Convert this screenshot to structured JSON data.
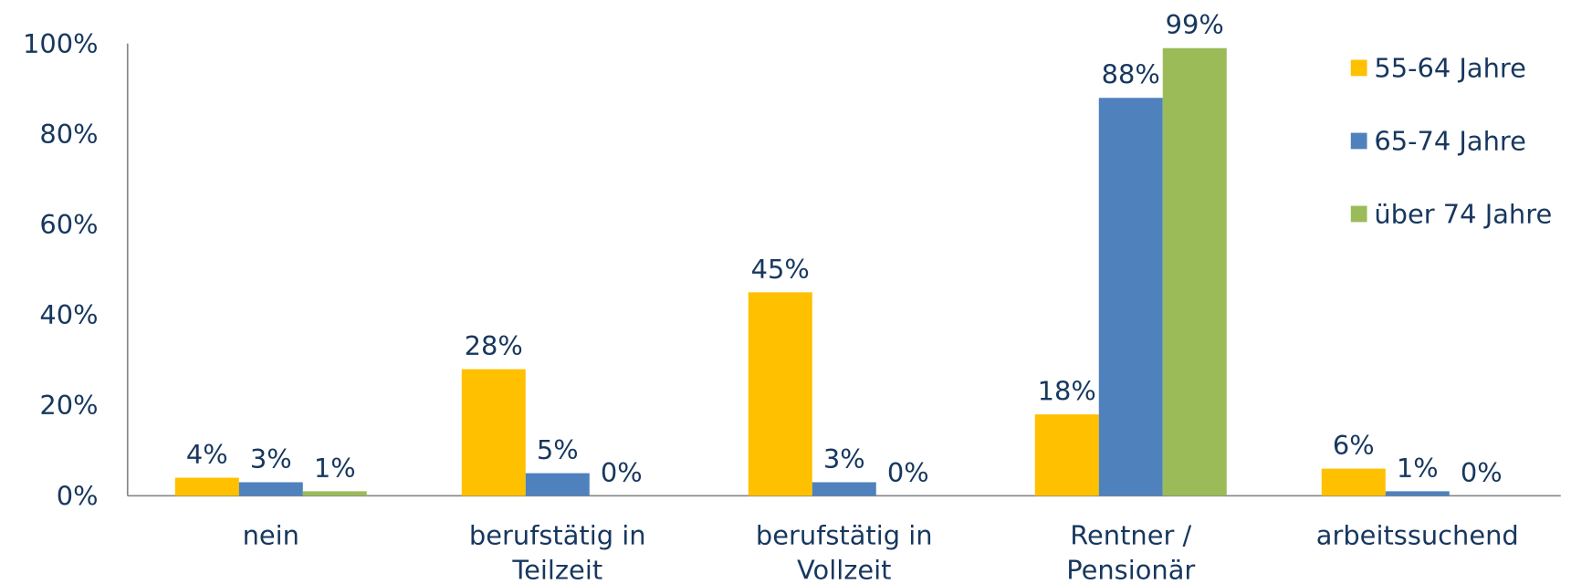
{
  "chart_data": {
    "type": "bar",
    "categories": [
      [
        "nein"
      ],
      [
        "berufstätig in",
        "Teilzeit"
      ],
      [
        "berufstätig in",
        "Vollzeit"
      ],
      [
        "Rentner /",
        "Pensionär"
      ],
      [
        "arbeitssuchend"
      ]
    ],
    "series": [
      {
        "name": "55-64 Jahre",
        "color": "#FFC000",
        "values": [
          4,
          28,
          45,
          18,
          6
        ],
        "value_labels": [
          "4%",
          "28%",
          "45%",
          "18%",
          "6%"
        ]
      },
      {
        "name": "65-74 Jahre",
        "color": "#4F81BD",
        "values": [
          3,
          5,
          3,
          88,
          1
        ],
        "value_labels": [
          "3%",
          "5%",
          "3%",
          "88%",
          "1%"
        ]
      },
      {
        "name": "über 74 Jahre",
        "color": "#9BBB59",
        "values": [
          1,
          0,
          0,
          99,
          0
        ],
        "value_labels": [
          "1%",
          "0%",
          "0%",
          "99%",
          "0%"
        ]
      }
    ],
    "ylim": [
      0,
      100
    ],
    "yticks": [
      {
        "value": 0,
        "label": "0%"
      },
      {
        "value": 20,
        "label": "20%"
      },
      {
        "value": 40,
        "label": "40%"
      },
      {
        "value": 60,
        "label": "60%"
      },
      {
        "value": 80,
        "label": "80%"
      },
      {
        "value": 100,
        "label": "100%"
      }
    ],
    "legend": "top-right",
    "grid": false
  }
}
